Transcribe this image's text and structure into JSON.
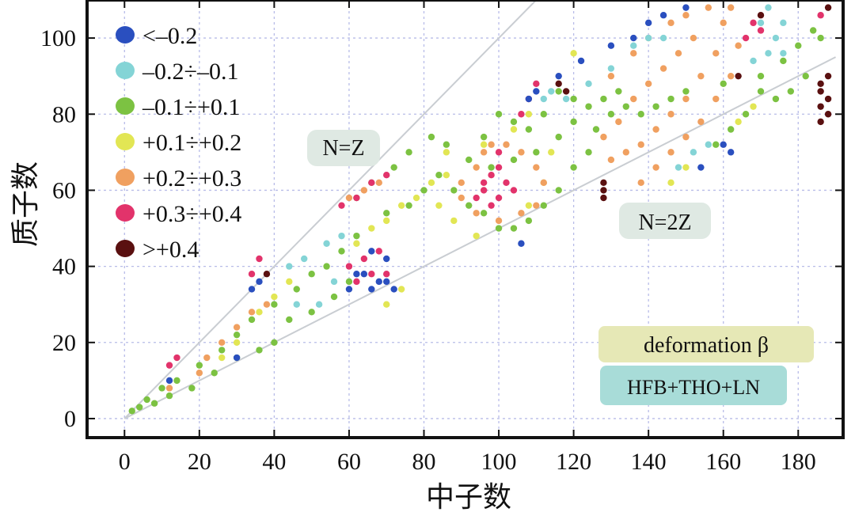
{
  "chart_data": {
    "type": "scatter",
    "title": "",
    "xlabel": "中子数",
    "ylabel": "质子数",
    "xlim": [
      -10,
      192
    ],
    "ylim": [
      -5,
      110
    ],
    "xticks": [
      0,
      20,
      40,
      60,
      80,
      100,
      120,
      140,
      160,
      180
    ],
    "yticks": [
      0,
      20,
      40,
      60,
      80,
      100
    ],
    "grid": true,
    "legend_position": "top-left",
    "legend": [
      {
        "label": "<–0.2",
        "color": "#2a4fbf"
      },
      {
        "label": "–0.2÷–0.1",
        "color": "#84d4d6"
      },
      {
        "label": "–0.1÷+0.1",
        "color": "#7cc242"
      },
      {
        "label": "+0.1÷+0.2",
        "color": "#e2e654"
      },
      {
        "label": "+0.2÷+0.3",
        "color": "#f0a060"
      },
      {
        "label": "+0.3÷+0.4",
        "color": "#e2336b"
      },
      {
        "label": ">+0.4",
        "color": "#5a1010"
      }
    ],
    "annotations": [
      {
        "text": "N=Z",
        "line": {
          "from": [
            0,
            0
          ],
          "to": [
            110,
            110
          ]
        }
      },
      {
        "text": "N=2Z",
        "line": {
          "from": [
            0,
            0
          ],
          "to": [
            190,
            95
          ]
        }
      },
      {
        "text": "deformation β"
      },
      {
        "text": "HFB+THO+LN"
      }
    ],
    "series": [
      {
        "class": 2,
        "points": [
          [
            2,
            2
          ],
          [
            4,
            3
          ],
          [
            6,
            5
          ],
          [
            10,
            8
          ],
          [
            14,
            10
          ],
          [
            20,
            14
          ],
          [
            26,
            18
          ],
          [
            30,
            22
          ],
          [
            34,
            26
          ],
          [
            40,
            30
          ],
          [
            46,
            34
          ],
          [
            50,
            38
          ],
          [
            54,
            40
          ],
          [
            58,
            44
          ],
          [
            62,
            48
          ],
          [
            70,
            54
          ],
          [
            76,
            56
          ],
          [
            80,
            60
          ],
          [
            84,
            64
          ],
          [
            88,
            60
          ],
          [
            92,
            56
          ],
          [
            96,
            54
          ],
          [
            100,
            50
          ],
          [
            104,
            50
          ],
          [
            108,
            52
          ],
          [
            112,
            56
          ],
          [
            116,
            60
          ],
          [
            120,
            66
          ],
          [
            124,
            70
          ],
          [
            126,
            76
          ],
          [
            130,
            80
          ],
          [
            134,
            82
          ],
          [
            138,
            80
          ],
          [
            142,
            82
          ],
          [
            146,
            84
          ],
          [
            150,
            86
          ],
          [
            160,
            88
          ],
          [
            170,
            90
          ],
          [
            176,
            94
          ],
          [
            180,
            98
          ],
          [
            184,
            102
          ],
          [
            186,
            100
          ],
          [
            182,
            90
          ],
          [
            178,
            86
          ],
          [
            174,
            84
          ],
          [
            170,
            86
          ],
          [
            166,
            80
          ],
          [
            162,
            76
          ],
          [
            158,
            72
          ],
          [
            120,
            84
          ],
          [
            116,
            86
          ],
          [
            112,
            80
          ],
          [
            108,
            76
          ],
          [
            104,
            78
          ],
          [
            100,
            80
          ],
          [
            96,
            74
          ],
          [
            60,
            36
          ],
          [
            56,
            32
          ],
          [
            50,
            28
          ],
          [
            44,
            26
          ],
          [
            40,
            20
          ],
          [
            36,
            18
          ],
          [
            30,
            16
          ],
          [
            24,
            12
          ],
          [
            18,
            8
          ],
          [
            12,
            6
          ],
          [
            8,
            4
          ],
          [
            116,
            74
          ],
          [
            120,
            78
          ],
          [
            124,
            82
          ],
          [
            128,
            84
          ],
          [
            132,
            86
          ],
          [
            110,
            70
          ],
          [
            104,
            68
          ],
          [
            98,
            66
          ],
          [
            92,
            68
          ],
          [
            86,
            72
          ],
          [
            82,
            74
          ],
          [
            76,
            70
          ],
          [
            72,
            66
          ],
          [
            66,
            62
          ],
          [
            62,
            58
          ]
        ]
      },
      {
        "class": 3,
        "points": [
          [
            62,
            46
          ],
          [
            66,
            50
          ],
          [
            70,
            52
          ],
          [
            74,
            56
          ],
          [
            78,
            58
          ],
          [
            82,
            62
          ],
          [
            86,
            64
          ],
          [
            86,
            70
          ],
          [
            84,
            56
          ],
          [
            88,
            52
          ],
          [
            94,
            48
          ],
          [
            108,
            56
          ],
          [
            112,
            62
          ],
          [
            104,
            76
          ],
          [
            108,
            80
          ],
          [
            114,
            70
          ],
          [
            40,
            32
          ],
          [
            44,
            36
          ],
          [
            36,
            28
          ],
          [
            30,
            20
          ],
          [
            26,
            16
          ],
          [
            70,
            30
          ],
          [
            74,
            34
          ],
          [
            96,
            72
          ],
          [
            164,
            78
          ],
          [
            168,
            82
          ],
          [
            150,
            66
          ],
          [
            146,
            62
          ],
          [
            120,
            96
          ]
        ]
      },
      {
        "class": 4,
        "points": [
          [
            90,
            62
          ],
          [
            94,
            66
          ],
          [
            96,
            70
          ],
          [
            98,
            72
          ],
          [
            102,
            72
          ],
          [
            106,
            70
          ],
          [
            110,
            66
          ],
          [
            112,
            62
          ],
          [
            110,
            56
          ],
          [
            106,
            54
          ],
          [
            100,
            52
          ],
          [
            94,
            54
          ],
          [
            90,
            58
          ],
          [
            130,
            90
          ],
          [
            136,
            96
          ],
          [
            140,
            100
          ],
          [
            146,
            104
          ],
          [
            150,
            106
          ],
          [
            156,
            108
          ],
          [
            160,
            104
          ],
          [
            158,
            96
          ],
          [
            154,
            90
          ],
          [
            150,
            84
          ],
          [
            146,
            80
          ],
          [
            142,
            76
          ],
          [
            138,
            72
          ],
          [
            134,
            70
          ],
          [
            130,
            68
          ],
          [
            128,
            74
          ],
          [
            132,
            78
          ],
          [
            136,
            84
          ],
          [
            140,
            88
          ],
          [
            144,
            92
          ],
          [
            148,
            96
          ],
          [
            152,
            100
          ],
          [
            162,
            108
          ],
          [
            164,
            98
          ],
          [
            162,
            90
          ],
          [
            158,
            84
          ],
          [
            154,
            78
          ],
          [
            150,
            74
          ],
          [
            146,
            70
          ],
          [
            142,
            66
          ],
          [
            138,
            62
          ],
          [
            60,
            58
          ],
          [
            64,
            60
          ],
          [
            68,
            62
          ],
          [
            20,
            12
          ],
          [
            22,
            16
          ],
          [
            26,
            20
          ],
          [
            30,
            24
          ],
          [
            34,
            28
          ],
          [
            38,
            30
          ],
          [
            12,
            8
          ]
        ]
      },
      {
        "class": 5,
        "points": [
          [
            94,
            58
          ],
          [
            96,
            62
          ],
          [
            98,
            64
          ],
          [
            100,
            66
          ],
          [
            102,
            62
          ],
          [
            104,
            60
          ],
          [
            100,
            58
          ],
          [
            98,
            56
          ],
          [
            96,
            60
          ],
          [
            100,
            70
          ],
          [
            60,
            40
          ],
          [
            64,
            42
          ],
          [
            68,
            44
          ],
          [
            70,
            38
          ],
          [
            66,
            38
          ],
          [
            62,
            36
          ],
          [
            58,
            56
          ],
          [
            62,
            58
          ],
          [
            66,
            62
          ],
          [
            70,
            64
          ],
          [
            106,
            80
          ],
          [
            108,
            84
          ],
          [
            110,
            88
          ],
          [
            12,
            14
          ],
          [
            14,
            16
          ],
          [
            166,
            100
          ],
          [
            168,
            104
          ],
          [
            170,
            102
          ],
          [
            186,
            106
          ],
          [
            34,
            38
          ],
          [
            36,
            42
          ]
        ]
      },
      {
        "class": 1,
        "points": [
          [
            140,
            100
          ],
          [
            144,
            100
          ],
          [
            136,
            98
          ],
          [
            130,
            92
          ],
          [
            124,
            88
          ],
          [
            118,
            84
          ],
          [
            112,
            84
          ],
          [
            114,
            86
          ],
          [
            168,
            94
          ],
          [
            172,
            96
          ],
          [
            176,
            96
          ],
          [
            174,
            100
          ],
          [
            170,
            104
          ],
          [
            172,
            108
          ],
          [
            176,
            104
          ],
          [
            156,
            72
          ],
          [
            152,
            70
          ],
          [
            148,
            66
          ],
          [
            60,
            68
          ],
          [
            64,
            72
          ],
          [
            66,
            74
          ],
          [
            54,
            46
          ],
          [
            58,
            48
          ],
          [
            44,
            40
          ],
          [
            48,
            42
          ],
          [
            52,
            30
          ],
          [
            56,
            36
          ],
          [
            46,
            30
          ]
        ]
      },
      {
        "class": 0,
        "points": [
          [
            66,
            44
          ],
          [
            70,
            42
          ],
          [
            64,
            38
          ],
          [
            60,
            34
          ],
          [
            66,
            34
          ],
          [
            70,
            36
          ],
          [
            72,
            34
          ],
          [
            106,
            46
          ],
          [
            108,
            84
          ],
          [
            110,
            86
          ],
          [
            116,
            90
          ],
          [
            122,
            94
          ],
          [
            130,
            98
          ],
          [
            136,
            100
          ],
          [
            140,
            104
          ],
          [
            144,
            106
          ],
          [
            150,
            108
          ],
          [
            160,
            72
          ],
          [
            162,
            70
          ],
          [
            34,
            34
          ],
          [
            36,
            36
          ],
          [
            30,
            16
          ],
          [
            154,
            66
          ],
          [
            12,
            10
          ],
          [
            68,
            36
          ],
          [
            62,
            38
          ]
        ]
      },
      {
        "class": 6,
        "points": [
          [
            188,
            108
          ],
          [
            170,
            106
          ],
          [
            186,
            88
          ],
          [
            188,
            90
          ],
          [
            186,
            86
          ],
          [
            188,
            84
          ],
          [
            186,
            82
          ],
          [
            188,
            80
          ],
          [
            186,
            78
          ],
          [
            128,
            62
          ],
          [
            128,
            60
          ],
          [
            128,
            58
          ],
          [
            164,
            90
          ],
          [
            116,
            88
          ],
          [
            118,
            86
          ],
          [
            38,
            38
          ]
        ]
      }
    ]
  }
}
